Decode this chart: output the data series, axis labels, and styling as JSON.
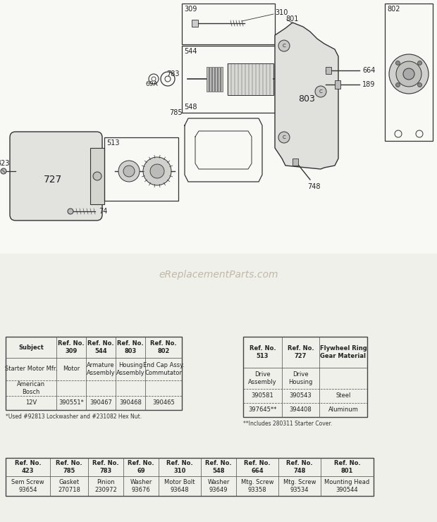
{
  "bg_color": "#f0f0eb",
  "watermark": "eReplacementParts.com",
  "table1_headers": [
    "Subject",
    "Ref. No.\n309",
    "Ref. No.\n544",
    "Ref. No.\n803",
    "Ref. No.\n802"
  ],
  "table1_rows": [
    [
      "Starter Motor Mfr.",
      "Motor",
      "Armature\nAssembly",
      "Housing\nAssembly",
      "End Cap Assy.\nCommutator"
    ],
    [
      "American\nBosch",
      "",
      "",
      "",
      ""
    ],
    [
      "12V",
      "390551*",
      "390467",
      "390468",
      "390465"
    ]
  ],
  "table1_footnote": "*Used #92813 Lockwasher and #231082 Hex Nut.",
  "table2_headers": [
    "Ref. No.\n513",
    "Ref. No.\n727",
    "Flywheel Ring\nGear Material"
  ],
  "table2_rows": [
    [
      "Drive\nAssembly",
      "Drive\nHousing",
      ""
    ],
    [
      "390581",
      "390543",
      "Steel"
    ],
    [
      "397645**",
      "394408",
      "Aluminum"
    ]
  ],
  "table2_footnote": "**Includes 280311 Starter Cover.",
  "table3_headers": [
    "Ref. No.\n423",
    "Ref. No.\n785",
    "Ref. No.\n783",
    "Ref. No.\n69",
    "Ref. No.\n310",
    "Ref. No.\n548",
    "Ref. No.\n664",
    "Ref. No.\n748",
    "Ref. No.\n801"
  ],
  "table3_rows": [
    [
      "Sem Screw\n93654",
      "Gasket\n270718",
      "Pinion\n230972",
      "Washer\n93676",
      "Motor Bolt\n93648",
      "Washer\n93649",
      "Mtg. Screw\n93358",
      "Mtg. Screw\n93534",
      "Mounting Head\n390544"
    ]
  ]
}
